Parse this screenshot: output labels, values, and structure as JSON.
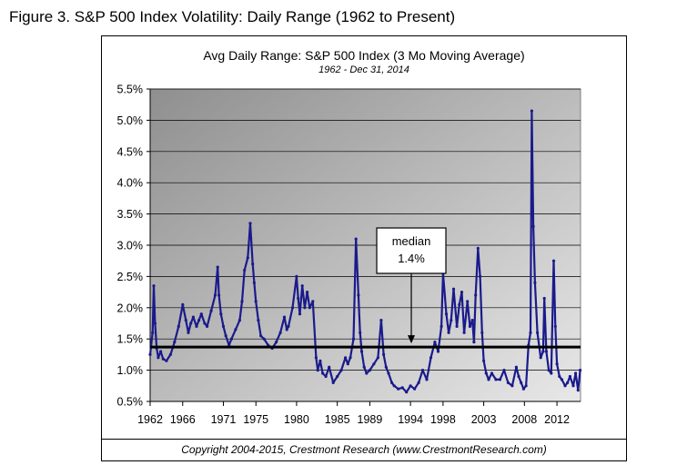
{
  "figure_title": "Figure 3.  S&P 500 Index Volatility: Daily Range (1962 to Present)",
  "copyright": "Copyright 2004-2015, Crestmont Research (www.CrestmontResearch.com)",
  "colors": {
    "series": "#1a1a8c",
    "median": "#000000",
    "plot_bg_dark": "#8f8f8f",
    "plot_bg_light": "#e8e8e8"
  },
  "chart_data": {
    "type": "line",
    "title": "Avg Daily Range: S&P 500 Index (3 Mo Moving Average)",
    "subtitle": "1962 - Dec 31, 2014",
    "xlabel": "",
    "ylabel": "",
    "xlim": [
      1962,
      2014.9
    ],
    "ylim": [
      0.5,
      5.5
    ],
    "grid": true,
    "y_ticks": [
      0.5,
      1.0,
      1.5,
      2.0,
      2.5,
      3.0,
      3.5,
      4.0,
      4.5,
      5.0,
      5.5
    ],
    "y_tick_labels": [
      "0.5%",
      "1.0%",
      "1.5%",
      "2.0%",
      "2.5%",
      "3.0%",
      "3.5%",
      "4.0%",
      "4.5%",
      "5.0%",
      "5.5%"
    ],
    "x_ticks": [
      1962,
      1966,
      1971,
      1975,
      1980,
      1985,
      1989,
      1994,
      1998,
      2003,
      2008,
      2012
    ],
    "x_tick_labels": [
      "1962",
      "1966",
      "1971",
      "1975",
      "1980",
      "1985",
      "1989",
      "1994",
      "1998",
      "2003",
      "2008",
      "2012"
    ],
    "median": {
      "value": 1.37,
      "label_line1": "median",
      "label_line2": "1.4%",
      "label_x": 1994.1
    },
    "series": [
      {
        "name": "Avg Daily Range (3 Mo Moving Average)",
        "x": [
          1962.0,
          1962.3,
          1962.45,
          1962.6,
          1962.8,
          1963.0,
          1963.3,
          1963.6,
          1964.0,
          1964.5,
          1965.0,
          1965.5,
          1966.0,
          1966.4,
          1966.7,
          1967.0,
          1967.3,
          1967.7,
          1968.0,
          1968.3,
          1968.7,
          1969.0,
          1969.5,
          1970.0,
          1970.3,
          1970.45,
          1970.7,
          1971.0,
          1971.3,
          1971.7,
          1972.0,
          1972.5,
          1973.0,
          1973.3,
          1973.6,
          1974.0,
          1974.3,
          1974.6,
          1974.8,
          1975.0,
          1975.3,
          1975.6,
          1976.0,
          1976.5,
          1977.0,
          1977.5,
          1978.0,
          1978.5,
          1978.8,
          1979.0,
          1979.5,
          1980.0,
          1980.2,
          1980.4,
          1980.7,
          1981.0,
          1981.3,
          1981.6,
          1982.0,
          1982.4,
          1982.6,
          1982.9,
          1983.2,
          1983.6,
          1984.0,
          1984.5,
          1985.0,
          1985.5,
          1986.0,
          1986.3,
          1986.6,
          1987.0,
          1987.3,
          1987.6,
          1987.8,
          1988.0,
          1988.3,
          1988.6,
          1989.0,
          1989.5,
          1990.0,
          1990.4,
          1990.7,
          1991.0,
          1991.3,
          1991.7,
          1992.0,
          1992.5,
          1993.0,
          1993.5,
          1994.0,
          1994.5,
          1995.0,
          1995.5,
          1996.0,
          1996.5,
          1997.0,
          1997.4,
          1997.8,
          1998.0,
          1998.4,
          1998.7,
          1999.0,
          1999.3,
          1999.7,
          2000.0,
          2000.3,
          2000.6,
          2001.0,
          2001.3,
          2001.6,
          2001.8,
          2002.0,
          2002.3,
          2002.55,
          2002.8,
          2003.0,
          2003.3,
          2003.6,
          2004.0,
          2004.5,
          2005.0,
          2005.5,
          2006.0,
          2006.5,
          2007.0,
          2007.3,
          2007.6,
          2007.9,
          2008.2,
          2008.5,
          2008.75,
          2008.9,
          2009.1,
          2009.3,
          2009.6,
          2010.0,
          2010.3,
          2010.45,
          2010.7,
          2011.0,
          2011.3,
          2011.6,
          2011.8,
          2012.0,
          2012.3,
          2012.6,
          2013.0,
          2013.3,
          2013.6,
          2014.0,
          2014.3,
          2014.6,
          2014.85
        ],
        "values": [
          1.25,
          1.6,
          2.35,
          1.75,
          1.35,
          1.2,
          1.3,
          1.18,
          1.15,
          1.25,
          1.45,
          1.7,
          2.05,
          1.8,
          1.6,
          1.75,
          1.85,
          1.7,
          1.8,
          1.9,
          1.75,
          1.7,
          1.95,
          2.2,
          2.65,
          2.2,
          1.9,
          1.7,
          1.55,
          1.4,
          1.5,
          1.65,
          1.8,
          2.1,
          2.6,
          2.8,
          3.35,
          2.7,
          2.4,
          2.1,
          1.8,
          1.55,
          1.5,
          1.4,
          1.35,
          1.45,
          1.6,
          1.85,
          1.65,
          1.7,
          2.0,
          2.5,
          2.15,
          1.9,
          2.35,
          2.0,
          2.25,
          2.0,
          2.1,
          1.2,
          1.0,
          1.15,
          0.95,
          0.9,
          1.05,
          0.8,
          0.9,
          1.0,
          1.2,
          1.1,
          1.2,
          1.5,
          3.1,
          2.2,
          1.6,
          1.3,
          1.05,
          0.95,
          1.0,
          1.1,
          1.2,
          1.8,
          1.25,
          1.05,
          0.95,
          0.8,
          0.75,
          0.7,
          0.72,
          0.65,
          0.75,
          0.7,
          0.8,
          1.0,
          0.85,
          1.2,
          1.45,
          1.3,
          1.7,
          2.55,
          1.9,
          1.6,
          1.8,
          2.3,
          1.7,
          2.05,
          2.25,
          1.6,
          2.1,
          1.7,
          1.8,
          1.45,
          2.2,
          2.95,
          2.5,
          1.6,
          1.15,
          0.95,
          0.85,
          0.95,
          0.85,
          0.85,
          1.0,
          0.8,
          0.75,
          1.05,
          0.9,
          0.8,
          0.7,
          0.75,
          1.4,
          1.6,
          5.15,
          3.3,
          2.4,
          1.6,
          1.2,
          1.3,
          2.15,
          1.3,
          1.0,
          0.95,
          2.75,
          1.7,
          1.1,
          0.9,
          0.85,
          0.75,
          0.8,
          0.9,
          0.75,
          0.95,
          0.68,
          1.0
        ]
      }
    ]
  }
}
